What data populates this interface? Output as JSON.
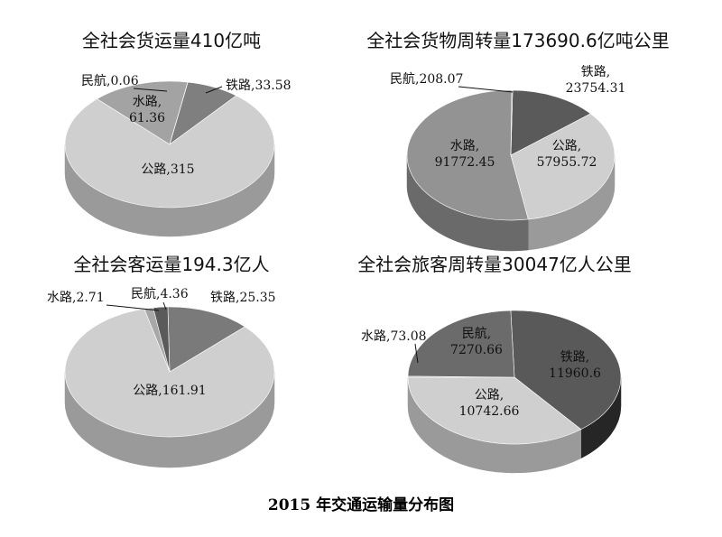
{
  "caption": "2015 年交通运输量分布图",
  "chart_data": [
    {
      "type": "pie",
      "title": "全社会货运量410亿吨",
      "slices": [
        {
          "name": "铁路",
          "value": 33.58,
          "color": "#7f7f7f",
          "side": "#5e5e5e",
          "label": [
            "铁路,33.58"
          ]
        },
        {
          "name": "公路",
          "value": 315,
          "color": "#cfcfcf",
          "side": "#9a9a9a",
          "label": [
            "公路,315"
          ]
        },
        {
          "name": "水路",
          "value": 61.36,
          "color": "#a3a3a3",
          "side": "#767676",
          "label": [
            "水路,",
            "61.36"
          ]
        },
        {
          "name": "民航",
          "value": 0.06,
          "color": "#444444",
          "side": "#2c2c2c",
          "label": [
            "民航,0.06"
          ]
        }
      ]
    },
    {
      "type": "pie",
      "title": "全社会货物周转量173690.6亿吨公里",
      "slices": [
        {
          "name": "铁路",
          "value": 23754.31,
          "color": "#5a5a5a",
          "side": "#3c3c3c",
          "label": [
            "铁路,",
            "23754.31"
          ]
        },
        {
          "name": "公路",
          "value": 57955.72,
          "color": "#cfcfcf",
          "side": "#9a9a9a",
          "label": [
            "公路,",
            "57955.72"
          ]
        },
        {
          "name": "水路",
          "value": 91772.45,
          "color": "#939393",
          "side": "#6a6a6a",
          "label": [
            "水路,",
            "91772.45"
          ]
        },
        {
          "name": "民航",
          "value": 208.07,
          "color": "#444444",
          "side": "#2c2c2c",
          "label": [
            "民航,208.07"
          ]
        }
      ]
    },
    {
      "type": "pie",
      "title": "全社会客运量194.3亿人",
      "slices": [
        {
          "name": "铁路",
          "value": 25.35,
          "color": "#7a7a7a",
          "side": "#585858",
          "label": [
            "铁路,25.35"
          ]
        },
        {
          "name": "公路",
          "value": 161.91,
          "color": "#cfcfcf",
          "side": "#9a9a9a",
          "label": [
            "公路,161.91"
          ]
        },
        {
          "name": "水路",
          "value": 2.71,
          "color": "#a8a8a8",
          "side": "#7c7c7c",
          "label": [
            "水路,2.71"
          ]
        },
        {
          "name": "民航",
          "value": 4.36,
          "color": "#5a5a5a",
          "side": "#3c3c3c",
          "label": [
            "民航,4.36"
          ]
        }
      ]
    },
    {
      "type": "pie",
      "title": "全社会旅客周转量30047亿人公里",
      "slices": [
        {
          "name": "铁路",
          "value": 11960.6,
          "color": "#595959",
          "side": "#262626",
          "label": [
            "铁路,",
            "11960.6"
          ]
        },
        {
          "name": "公路",
          "value": 10742.66,
          "color": "#cfcfcf",
          "side": "#9a9a9a",
          "label": [
            "公路,",
            "10742.66"
          ]
        },
        {
          "name": "水路",
          "value": 73.08,
          "color": "#a3a3a3",
          "side": "#767676",
          "label": [
            "水路,73.08"
          ]
        },
        {
          "name": "民航",
          "value": 7270.66,
          "color": "#6b6b6b",
          "side": "#474747",
          "label": [
            "民航,",
            "7270.66"
          ]
        }
      ]
    }
  ]
}
